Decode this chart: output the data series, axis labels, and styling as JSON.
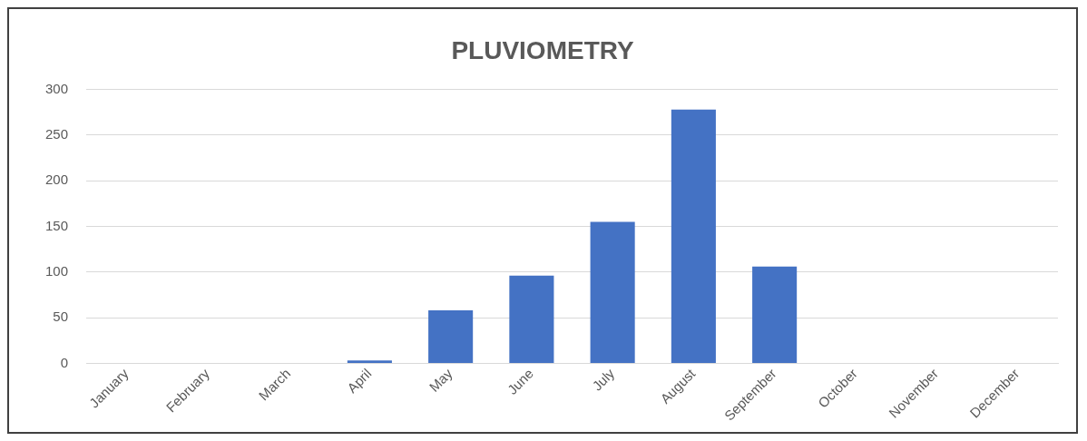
{
  "chart_data": {
    "type": "bar",
    "title": "PLUVIOMETRY",
    "categories": [
      "January",
      "February",
      "March",
      "April",
      "May",
      "June",
      "July",
      "August",
      "September",
      "October",
      "November",
      "December"
    ],
    "values": [
      0,
      0,
      0,
      3,
      58,
      96,
      155,
      278,
      106,
      0,
      0,
      0
    ],
    "color": "#4472c4",
    "ylim": [
      0,
      300
    ],
    "yticks": [
      0,
      50,
      100,
      150,
      200,
      250,
      300
    ],
    "grid": "y",
    "legend": false
  }
}
